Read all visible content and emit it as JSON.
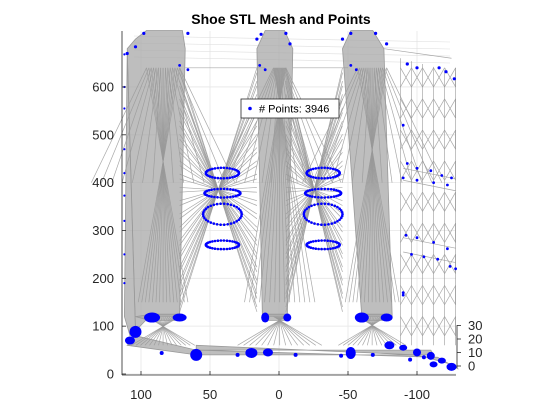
{
  "chart_data": {
    "type": "scatter",
    "title": "Shoe STL Mesh and Points",
    "xlabel": "",
    "ylabel": "",
    "zlabel": "",
    "view": "3d-orthographic",
    "x_reversed": true,
    "xlim": [
      112,
      -130
    ],
    "ylim": [
      0,
      720
    ],
    "zlim": [
      -5,
      35
    ],
    "xticks": [
      100,
      50,
      0,
      -50,
      -100
    ],
    "yticks": [
      0,
      100,
      200,
      300,
      400,
      500,
      600
    ],
    "zticks": [
      0,
      10,
      20,
      30
    ],
    "grid": true,
    "legend": {
      "label": "# Points: 3946",
      "placement": "inside-top"
    },
    "series": [
      {
        "name": "# Points: 3946",
        "kind": "points",
        "count": 3946
      }
    ],
    "mesh": {
      "kind": "triangle-wireframe"
    },
    "colors": {
      "mesh": "#999999",
      "points": "#0000ff",
      "axes": "#262626",
      "grid": "#e6e6e6"
    }
  }
}
